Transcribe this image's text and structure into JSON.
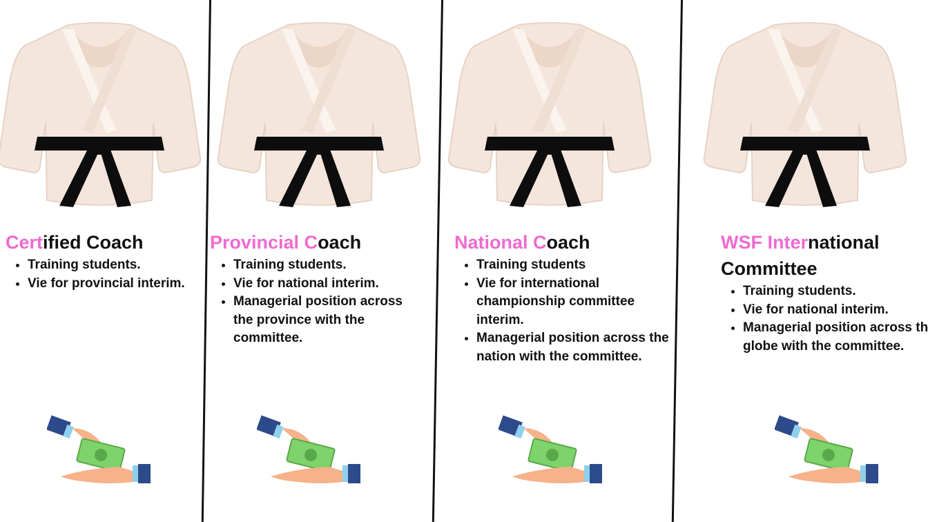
{
  "colors": {
    "accent": "#f06ad0",
    "text": "#111111",
    "gi": "#f4e6dc",
    "belt": "#0d0d0d",
    "cash": "#7ed36a",
    "cuff": "#2d4a8a",
    "skin": "#f6b28a"
  },
  "icons": {
    "gi": "karate-gi-icon",
    "money": "money-hand-icon"
  },
  "columns": [
    {
      "title_pink": "Cert",
      "title_rest": "ified Coach",
      "bullets": [
        "Training students.",
        "Vie for provincial interim."
      ]
    },
    {
      "title_pink": "Provincial  C",
      "title_rest": "oach",
      "bullets": [
        "Training students.",
        "Vie for national interim.",
        "Managerial position across the province with the committee."
      ]
    },
    {
      "title_pink": "National  C",
      "title_rest": "oach",
      "bullets": [
        "Training students",
        "Vie for international championship committee interim.",
        "Managerial position across the nation with the committee."
      ]
    },
    {
      "title_pink": "WSF Inter",
      "title_rest": "national Committee",
      "bullets": [
        "Training students.",
        "Vie for national interim.",
        "Managerial position across the globe with the committee."
      ]
    }
  ]
}
